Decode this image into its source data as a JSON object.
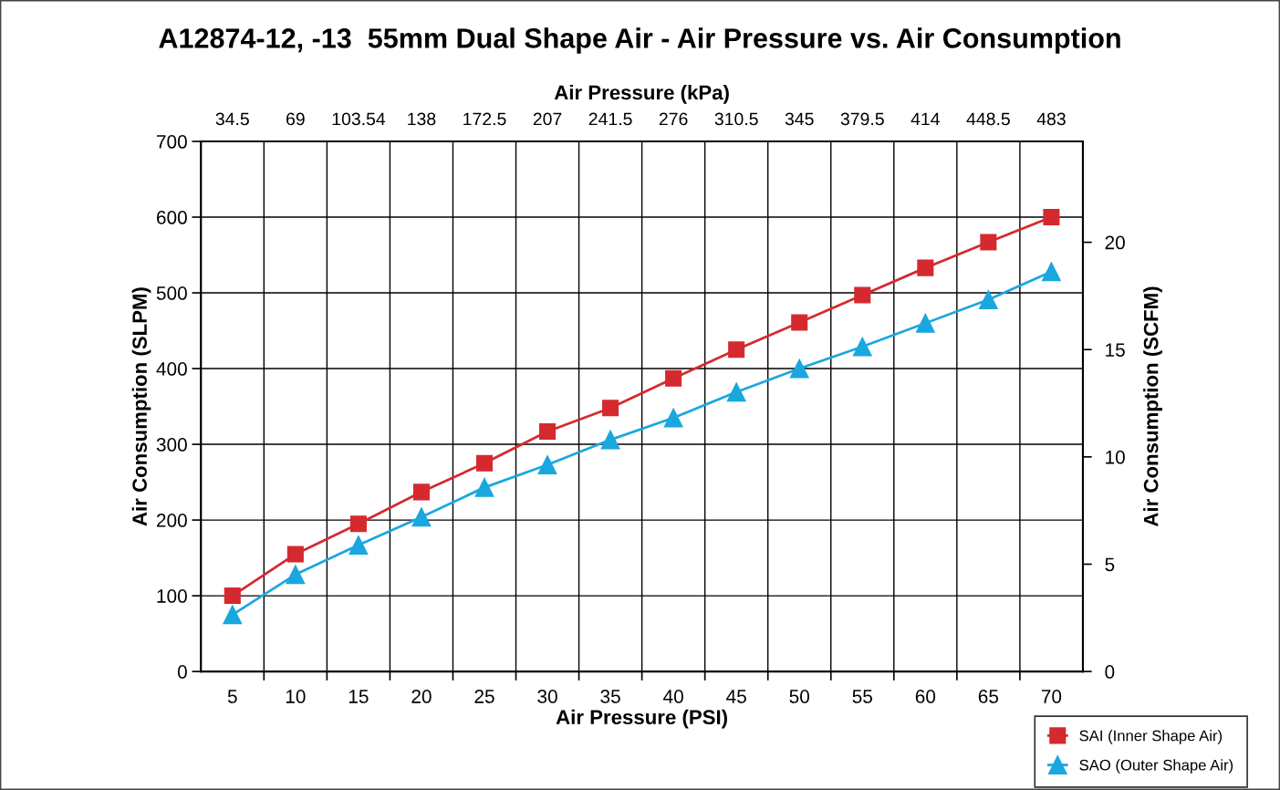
{
  "chart_data": {
    "type": "line",
    "title": "A12874-12, -13  55mm Dual Shape Air - Air Pressure vs. Air Consumption",
    "xlabel": "Air Pressure (PSI)",
    "x2label": "Air Pressure (kPa)",
    "ylabel": "Air Consumption (SLPM)",
    "y2label": "Air Consumption (SCFM)",
    "x": [
      5,
      10,
      15,
      20,
      25,
      30,
      35,
      40,
      45,
      50,
      55,
      60,
      65,
      70
    ],
    "series": [
      {
        "name": "SAI (Inner Shape Air)",
        "color": "#d42a2f",
        "marker": "square",
        "values": [
          100,
          155,
          195,
          237,
          275,
          317,
          348,
          387,
          425,
          461,
          497,
          533,
          567,
          600
        ]
      },
      {
        "name": "SAO (Outer Shape Air)",
        "color": "#1aa7e0",
        "marker": "triangle",
        "values": [
          75,
          128,
          167,
          204,
          243,
          273,
          306,
          335,
          369,
          400,
          429,
          460,
          491,
          528
        ]
      }
    ],
    "xlim": [
      2.5,
      72.5
    ],
    "xticks": [
      5,
      {
        "value": 7.5,
        "label": null
      },
      10,
      {
        "value": 12.5,
        "label": null
      },
      15,
      {
        "value": 17.5,
        "label": null
      },
      20,
      {
        "value": 22.5,
        "label": null
      },
      25,
      {
        "value": 27.5,
        "label": null
      },
      30,
      {
        "value": 32.5,
        "label": null
      },
      35,
      {
        "value": 37.5,
        "label": null
      },
      40,
      {
        "value": 42.5,
        "label": null
      },
      45,
      {
        "value": 47.5,
        "label": null
      },
      50,
      {
        "value": 52.5,
        "label": null
      },
      55,
      {
        "value": 57.5,
        "label": null
      },
      60,
      {
        "value": 62.5,
        "label": null
      },
      65,
      {
        "value": 67.5,
        "label": null
      },
      70
    ],
    "x2lim": [
      17.25,
      500.25
    ],
    "x2ticks": [
      34.5,
      69,
      103.54,
      138,
      172.5,
      207,
      241.5,
      276,
      310.5,
      345,
      379.5,
      414,
      448.5,
      483
    ],
    "ylim": [
      0,
      700
    ],
    "yticks": [
      0,
      100,
      200,
      300,
      400,
      500,
      600,
      700
    ],
    "y2lim": [
      0,
      24.7
    ],
    "y2ticks": [
      0,
      5,
      10,
      15,
      20
    ],
    "grid": true,
    "legend": "bottom right",
    "line_style": "solid"
  }
}
